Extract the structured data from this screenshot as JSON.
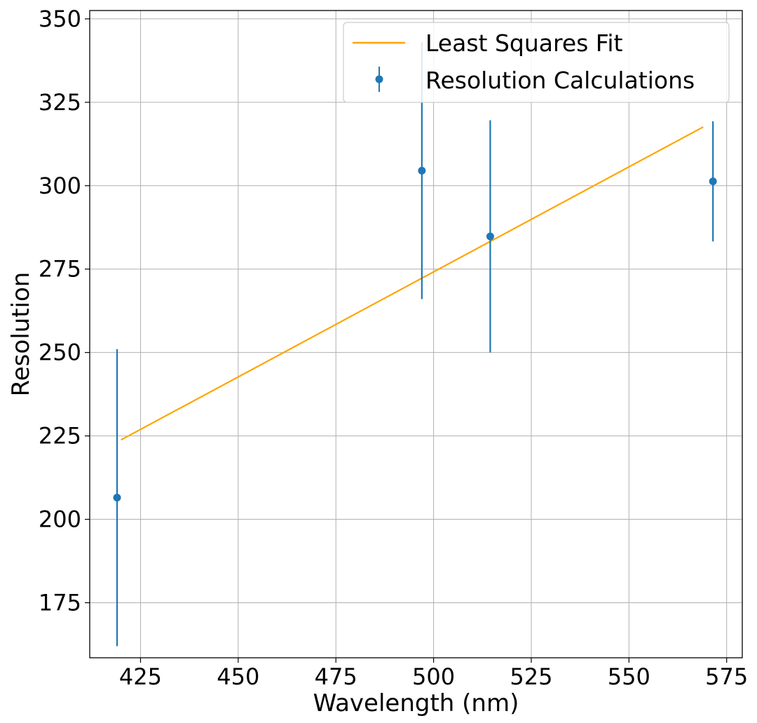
{
  "chart_data": {
    "type": "scatter",
    "xlabel": "Wavelength (nm)",
    "ylabel": "Resolution",
    "xlim": [
      412,
      579
    ],
    "ylim": [
      158.5,
      352.5
    ],
    "xticks": [
      425,
      450,
      475,
      500,
      525,
      550,
      575
    ],
    "yticks": [
      175,
      200,
      225,
      250,
      275,
      300,
      325,
      350
    ],
    "grid": true,
    "legend_position": "top-right",
    "series": [
      {
        "name": "Least Squares Fit",
        "kind": "line",
        "color": "#ffa500",
        "points": [
          [
            420,
            223.8
          ],
          [
            569,
            317.6
          ]
        ]
      },
      {
        "name": "Resolution Calculations",
        "kind": "errorbar",
        "color": "#1f77b4",
        "points": [
          {
            "x": 419,
            "y": 206.5,
            "err": 44.5
          },
          {
            "x": 497,
            "y": 304.5,
            "err": 38.5
          },
          {
            "x": 514.5,
            "y": 284.8,
            "err": 34.8
          },
          {
            "x": 571.5,
            "y": 301.3,
            "err": 18.0
          }
        ]
      }
    ]
  }
}
